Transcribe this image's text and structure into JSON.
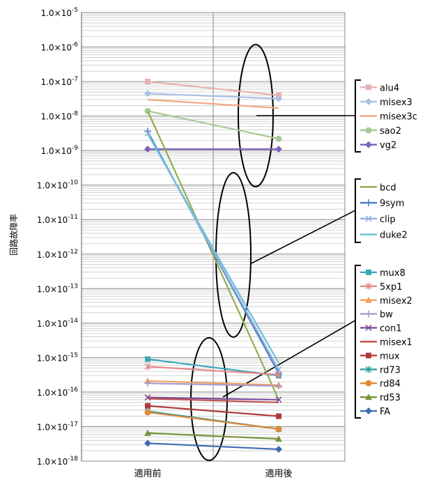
{
  "chart_data": {
    "type": "line",
    "title": "",
    "xlabel": "",
    "ylabel": "回路故障率",
    "y_scale": "log",
    "ylim": [
      1e-18,
      1e-05
    ],
    "ytick_labels": [
      {
        "mant": "1.0×10",
        "exp": "-18"
      },
      {
        "mant": "1.0×10",
        "exp": "-17"
      },
      {
        "mant": "1.0×10",
        "exp": "-16"
      },
      {
        "mant": "1.0×10",
        "exp": "-15"
      },
      {
        "mant": "1.0×10",
        "exp": "-14"
      },
      {
        "mant": "1.0×10",
        "exp": "-13"
      },
      {
        "mant": "1.0×10",
        "exp": "-12"
      },
      {
        "mant": "1.0×10",
        "exp": "-11"
      },
      {
        "mant": "1.0×10",
        "exp": "-10"
      },
      {
        "mant": "1.0×10",
        "exp": "-9"
      },
      {
        "mant": "1.0×10",
        "exp": "-8"
      },
      {
        "mant": "1.0×10",
        "exp": "-7"
      },
      {
        "mant": "1.0×10",
        "exp": "-6"
      },
      {
        "mant": "1.0×10",
        "exp": "-5"
      }
    ],
    "categories": [
      "適用前",
      "適用後"
    ],
    "grid": true,
    "legend_position": "right",
    "groups": [
      {
        "series": [
          {
            "name": "alu4",
            "values": [
              1e-07,
              4e-08
            ],
            "color": "#e6b0b0",
            "marker": "square"
          },
          {
            "name": "misex3",
            "values": [
              4.5e-08,
              3.2e-08
            ],
            "color": "#aac0e4",
            "marker": "diamond"
          },
          {
            "name": "misex3c",
            "values": [
              3e-08,
              1.7e-08
            ],
            "color": "#f3a780",
            "marker": "none"
          },
          {
            "name": "sao2",
            "values": [
              1.4e-08,
              2.2e-09
            ],
            "color": "#a9c996",
            "marker": "circle"
          },
          {
            "name": "vg2",
            "values": [
              1.1e-09,
              1.1e-09
            ],
            "color": "#7e63b8",
            "marker": "diamond"
          }
        ]
      },
      {
        "series": [
          {
            "name": "bcd",
            "values": [
              1.4e-08,
              6e-17
            ],
            "color": "#8fae52",
            "marker": "none"
          },
          {
            "name": "9sym",
            "values": [
              3.6e-09,
              3.5e-16
            ],
            "color": "#4e7ec2",
            "marker": "plus"
          },
          {
            "name": "clip",
            "values": [
              3.2e-09,
              4.5e-16
            ],
            "color": "#95b3de",
            "marker": "x"
          },
          {
            "name": "duke2",
            "values": [
              3e-09,
              7e-16
            ],
            "color": "#6cc0d9",
            "marker": "none"
          }
        ]
      },
      {
        "series": [
          {
            "name": "mux8",
            "values": [
              9e-16,
              3e-16
            ],
            "color": "#3aa6b9",
            "marker": "square"
          },
          {
            "name": "5xp1",
            "values": [
              5.5e-16,
              3.2e-16
            ],
            "color": "#e58a8a",
            "marker": "asterisk"
          },
          {
            "name": "misex2",
            "values": [
              2.1e-16,
              1.6e-16
            ],
            "color": "#f0a060",
            "marker": "triangle"
          },
          {
            "name": "bw",
            "values": [
              1.8e-16,
              1.5e-16
            ],
            "color": "#a79ad0",
            "marker": "plus"
          },
          {
            "name": "con1",
            "values": [
              7e-17,
              6e-17
            ],
            "color": "#7b4d9a",
            "marker": "x"
          },
          {
            "name": "misex1",
            "values": [
              6.5e-17,
              5e-17
            ],
            "color": "#c0504d",
            "marker": "none"
          },
          {
            "name": "mux",
            "values": [
              4e-17,
              2e-17
            ],
            "color": "#b03a3a",
            "marker": "square"
          },
          {
            "name": "rd73",
            "values": [
              2.8e-17,
              8.5e-18
            ],
            "color": "#2e9d9d",
            "marker": "asterisk"
          },
          {
            "name": "rd84",
            "values": [
              2.6e-17,
              8.5e-18
            ],
            "color": "#e08a3a",
            "marker": "circle"
          },
          {
            "name": "rd53",
            "values": [
              6.5e-18,
              4.4e-18
            ],
            "color": "#77933c",
            "marker": "triangle"
          },
          {
            "name": "FA",
            "values": [
              3.3e-18,
              2.2e-18
            ],
            "color": "#3f6db3",
            "marker": "diamond"
          }
        ]
      }
    ]
  }
}
